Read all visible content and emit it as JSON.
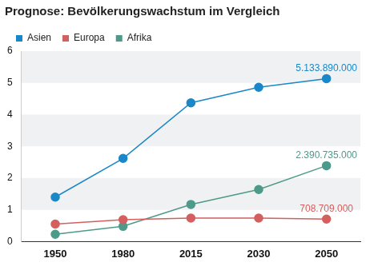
{
  "chart_data": {
    "type": "line",
    "title": "Prognose: Bevölkerungswachstum im Vergleich",
    "categories": [
      "1950",
      "1980",
      "2015",
      "2030",
      "2050"
    ],
    "series": [
      {
        "name": "Asien",
        "color": "#1a87c8",
        "marker": "circle",
        "values": [
          1.4,
          2.62,
          4.37,
          4.86,
          5.13389
        ],
        "value_labels": [
          null,
          null,
          null,
          null,
          "5.133.890.000"
        ]
      },
      {
        "name": "Europa",
        "color": "#d45f5f",
        "marker": "circle",
        "values": [
          0.55,
          0.69,
          0.74,
          0.74,
          0.708709
        ],
        "value_labels": [
          null,
          null,
          null,
          null,
          "708.709.000"
        ]
      },
      {
        "name": "Afrika",
        "color": "#4e9a8a",
        "marker": "circle",
        "values": [
          0.23,
          0.48,
          1.17,
          1.64,
          2.390735
        ],
        "value_labels": [
          null,
          null,
          null,
          null,
          "2.390.735.000"
        ]
      }
    ],
    "ylim": [
      0,
      6
    ],
    "yticks": [
      0,
      1,
      2,
      3,
      4,
      5,
      6
    ],
    "grid": true,
    "legend": "top-left"
  }
}
